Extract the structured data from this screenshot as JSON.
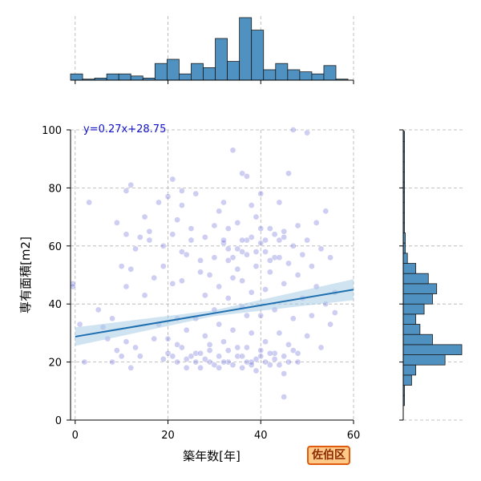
{
  "badge": "佐伯区",
  "colors": {
    "scatter_fill": "#3a3acf",
    "hist_fill": "#4f92c2",
    "hist_edge": "#1a1a1a",
    "reg_line": "#2070b0",
    "ci_band": "#a9cce6",
    "grid": "#b0b0b0",
    "badge_bg": "#ffc98a",
    "badge_border": "#e05a10",
    "equation": "#1010c8"
  },
  "chart_data": {
    "type": "scatter",
    "xlabel": "築年数[年]",
    "ylabel": "専有面積[m2]",
    "xlim": [
      -1,
      60
    ],
    "ylim": [
      0,
      100
    ],
    "x_ticks": [
      "0",
      "20",
      "40",
      "60"
    ],
    "y_ticks": [
      "0",
      "20",
      "40",
      "60",
      "80",
      "100"
    ],
    "x_tick_values": [
      0,
      20,
      40,
      60
    ],
    "y_tick_values": [
      0,
      20,
      40,
      60,
      80,
      100
    ],
    "grid": true,
    "regression": {
      "equation": "y=0.27x+28.75",
      "slope": 0.27,
      "intercept": 28.75,
      "ci_halfwidth": [
        3.2,
        1.0,
        3.6
      ]
    },
    "points": [
      [
        -0.5,
        47
      ],
      [
        -0.5,
        46
      ],
      [
        1,
        33
      ],
      [
        2,
        20
      ],
      [
        3,
        75
      ],
      [
        5,
        38
      ],
      [
        6,
        32
      ],
      [
        7,
        28
      ],
      [
        8,
        20
      ],
      [
        8,
        35
      ],
      [
        9,
        68
      ],
      [
        9,
        24
      ],
      [
        10,
        53
      ],
      [
        10,
        22
      ],
      [
        11,
        64
      ],
      [
        11,
        79
      ],
      [
        11,
        46
      ],
      [
        11,
        27
      ],
      [
        12,
        81
      ],
      [
        12,
        52
      ],
      [
        12,
        18
      ],
      [
        13,
        25
      ],
      [
        13,
        59
      ],
      [
        14,
        63
      ],
      [
        14,
        22
      ],
      [
        15,
        43
      ],
      [
        15,
        70
      ],
      [
        16,
        62
      ],
      [
        16,
        65
      ],
      [
        17,
        49
      ],
      [
        17,
        28
      ],
      [
        18,
        75
      ],
      [
        18,
        33
      ],
      [
        19,
        21
      ],
      [
        19,
        60
      ],
      [
        19,
        53
      ],
      [
        20,
        77
      ],
      [
        20,
        23
      ],
      [
        20,
        28
      ],
      [
        21,
        83
      ],
      [
        21,
        47
      ],
      [
        21,
        64
      ],
      [
        22,
        35
      ],
      [
        22,
        69
      ],
      [
        22,
        26
      ],
      [
        23,
        74
      ],
      [
        23,
        79
      ],
      [
        23,
        58
      ],
      [
        23,
        48
      ],
      [
        24,
        31
      ],
      [
        24,
        57
      ],
      [
        24,
        21
      ],
      [
        25,
        62
      ],
      [
        25,
        66
      ],
      [
        26,
        78
      ],
      [
        26,
        23
      ],
      [
        26,
        35
      ],
      [
        27,
        51
      ],
      [
        27,
        55
      ],
      [
        27,
        18
      ],
      [
        28,
        43
      ],
      [
        28,
        63
      ],
      [
        28,
        29
      ],
      [
        29,
        50
      ],
      [
        29,
        20
      ],
      [
        29,
        24
      ],
      [
        30,
        67
      ],
      [
        30,
        38
      ],
      [
        30,
        56
      ],
      [
        31,
        72
      ],
      [
        31,
        46
      ],
      [
        31,
        33
      ],
      [
        31,
        18
      ],
      [
        32,
        75
      ],
      [
        32,
        61
      ],
      [
        32,
        27
      ],
      [
        33,
        66
      ],
      [
        33,
        55
      ],
      [
        33,
        20
      ],
      [
        33,
        42
      ],
      [
        34,
        49
      ],
      [
        34,
        93
      ],
      [
        34,
        31
      ],
      [
        35,
        59
      ],
      [
        35,
        68
      ],
      [
        35,
        22
      ],
      [
        36,
        85
      ],
      [
        36,
        48
      ],
      [
        36,
        18
      ],
      [
        36,
        39
      ],
      [
        37,
        84
      ],
      [
        37,
        57
      ],
      [
        37,
        62
      ],
      [
        37,
        25
      ],
      [
        38,
        74
      ],
      [
        38,
        44
      ],
      [
        38,
        20
      ],
      [
        38,
        30
      ],
      [
        39,
        70
      ],
      [
        39,
        53
      ],
      [
        39,
        17
      ],
      [
        40,
        78
      ],
      [
        40,
        61
      ],
      [
        40,
        22
      ],
      [
        40,
        36
      ],
      [
        41,
        58
      ],
      [
        41,
        45
      ],
      [
        41,
        27
      ],
      [
        42,
        66
      ],
      [
        42,
        51
      ],
      [
        42,
        19
      ],
      [
        43,
        56
      ],
      [
        43,
        38
      ],
      [
        43,
        23
      ],
      [
        44,
        75
      ],
      [
        44,
        62
      ],
      [
        44,
        30
      ],
      [
        45,
        63
      ],
      [
        45,
        47
      ],
      [
        45,
        16
      ],
      [
        46,
        85
      ],
      [
        46,
        54
      ],
      [
        46,
        26
      ],
      [
        47,
        100
      ],
      [
        47,
        60
      ],
      [
        47,
        35
      ],
      [
        48,
        67
      ],
      [
        48,
        50
      ],
      [
        48,
        20
      ],
      [
        49,
        57
      ],
      [
        49,
        42
      ],
      [
        50,
        99
      ],
      [
        50,
        62
      ],
      [
        50,
        29
      ],
      [
        51,
        53
      ],
      [
        51,
        36
      ],
      [
        52,
        68
      ],
      [
        52,
        46
      ],
      [
        53,
        59
      ],
      [
        53,
        25
      ],
      [
        54,
        72
      ],
      [
        54,
        40
      ],
      [
        55,
        56
      ],
      [
        55,
        33
      ],
      [
        56,
        44
      ],
      [
        56,
        37
      ],
      [
        45,
        8
      ],
      [
        35,
        25
      ],
      [
        37,
        20
      ],
      [
        38,
        19
      ],
      [
        39,
        21
      ],
      [
        36,
        22
      ],
      [
        34,
        19
      ],
      [
        33,
        24
      ],
      [
        32,
        20
      ],
      [
        31,
        22
      ],
      [
        30,
        19
      ],
      [
        29,
        26
      ],
      [
        28,
        21
      ],
      [
        27,
        23
      ],
      [
        26,
        20
      ],
      [
        25,
        22
      ],
      [
        24,
        18
      ],
      [
        23,
        25
      ],
      [
        22,
        20
      ],
      [
        21,
        22
      ],
      [
        40,
        24
      ],
      [
        41,
        20
      ],
      [
        42,
        23
      ],
      [
        43,
        21
      ],
      [
        44,
        19
      ],
      [
        45,
        22
      ],
      [
        46,
        20
      ],
      [
        47,
        24
      ],
      [
        48,
        23
      ],
      [
        37,
        36
      ],
      [
        36,
        58
      ],
      [
        38,
        63
      ],
      [
        39,
        58
      ],
      [
        40,
        66
      ],
      [
        41,
        62
      ],
      [
        42,
        55
      ],
      [
        43,
        64
      ],
      [
        44,
        56
      ],
      [
        45,
        65
      ],
      [
        32,
        62
      ],
      [
        33,
        59
      ],
      [
        34,
        56
      ],
      [
        35,
        52
      ],
      [
        36,
        62
      ]
    ],
    "x_hist": {
      "bin_start": -1,
      "bin_width": 2.6,
      "counts": [
        3,
        0.5,
        1,
        3,
        3,
        2,
        1,
        8,
        10,
        3,
        8,
        6,
        20,
        9,
        30,
        24,
        5,
        8,
        5,
        4,
        3,
        7,
        0.5
      ]
    },
    "y_hist": {
      "bin_start": 5,
      "bin_width": 3.5,
      "counts": [
        0.3,
        0.3,
        2,
        3,
        10,
        14,
        7,
        4,
        3,
        5,
        7,
        8,
        6,
        3,
        1,
        0.5,
        0.5,
        0.3,
        0.3,
        0.3,
        0.3,
        0.3,
        0.3,
        0.3,
        0.3,
        0.3,
        0.3
      ]
    }
  }
}
